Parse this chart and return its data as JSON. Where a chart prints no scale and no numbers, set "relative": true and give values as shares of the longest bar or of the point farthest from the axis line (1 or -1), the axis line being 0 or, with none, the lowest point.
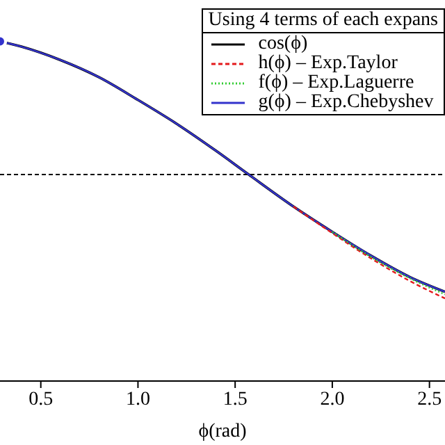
{
  "chart_data": {
    "type": "line",
    "xlabel": "ϕ(rad)",
    "legend_title": "Using 4 terms of each expans",
    "relative": true,
    "legend": "top right",
    "marker": "none",
    "x": [
      0.29,
      0.4,
      0.6,
      0.8,
      1.0,
      1.2,
      1.4,
      1.57,
      1.8,
      2.0,
      2.2,
      2.4,
      2.58
    ],
    "xlim": [
      0.29,
      2.58
    ],
    "xticks": [
      {
        "value": 0.5,
        "label": "0.5"
      },
      {
        "value": 1,
        "label": "1.0"
      },
      {
        "value": 1.5,
        "label": "1.5"
      },
      {
        "value": 2,
        "label": "2.0"
      },
      {
        "value": 2.5,
        "label": "2.5"
      }
    ],
    "ref_lines": [
      {
        "axis": "y",
        "value": 0,
        "color": "#000000",
        "line_style": "dashed"
      }
    ],
    "series": [
      {
        "name": "cos(ϕ)",
        "color": "#000000",
        "line_style": "solid",
        "values": [
          1,
          0.96,
          0.86,
          0.73,
          0.56,
          0.38,
          0.18,
          0,
          -0.24,
          -0.43,
          -0.61,
          -0.77,
          -0.88
        ]
      },
      {
        "name": "h(ϕ) – Exp.Taylor",
        "color": "#e41a1c",
        "line_style": "dashed",
        "values": [
          null,
          null,
          null,
          null,
          null,
          null,
          null,
          null,
          -0.24,
          -0.44,
          -0.63,
          -0.8,
          -0.93
        ]
      },
      {
        "name": "f(ϕ) – Exp.Laguerre",
        "color": "#33cc33",
        "line_style": "dotted",
        "values": [
          null,
          null,
          null,
          null,
          null,
          null,
          null,
          null,
          null,
          -0.43,
          -0.62,
          -0.78,
          -0.9
        ]
      },
      {
        "name": "g(ϕ) – Exp.Chebyshev",
        "color": "#3333cc",
        "line_style": "solid",
        "values": [
          1,
          0.96,
          0.86,
          0.73,
          0.56,
          0.38,
          0.18,
          0,
          -0.24,
          -0.43,
          -0.61,
          -0.77,
          -0.88
        ]
      }
    ]
  }
}
